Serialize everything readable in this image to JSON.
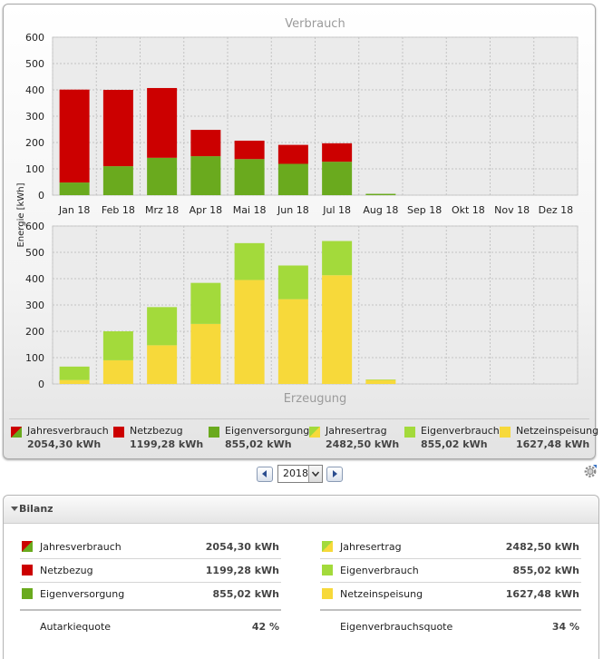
{
  "chart_data": [
    {
      "type": "bar",
      "stacked": true,
      "title": "Verbrauch",
      "ylabel": "Energie [kWh]",
      "ylim": [
        0,
        600
      ],
      "yticks": [
        0,
        100,
        200,
        300,
        400,
        500,
        600
      ],
      "grid": true,
      "categories": [
        "Jan 18",
        "Feb 18",
        "Mrz 18",
        "Apr 18",
        "Mai 18",
        "Jun 18",
        "Jul 18",
        "Aug 18",
        "Sep 18",
        "Okt 18",
        "Nov 18",
        "Dez 18"
      ],
      "series": [
        {
          "name": "Eigenversorgung",
          "color": "#6aaa1e",
          "values": [
            48,
            110,
            142,
            148,
            137,
            119,
            127,
            5,
            0,
            0,
            0,
            0
          ]
        },
        {
          "name": "Netzbezug",
          "color": "#cc0000",
          "values": [
            353,
            290,
            265,
            100,
            70,
            72,
            70,
            0,
            0,
            0,
            0,
            0
          ]
        }
      ]
    },
    {
      "type": "bar",
      "stacked": true,
      "title": "Erzeugung",
      "ylim": [
        0,
        600
      ],
      "yticks": [
        0,
        100,
        200,
        300,
        400,
        500,
        600
      ],
      "grid": true,
      "categories": [
        "Jan 18",
        "Feb 18",
        "Mrz 18",
        "Apr 18",
        "Mai 18",
        "Jun 18",
        "Jul 18",
        "Aug 18",
        "Sep 18",
        "Okt 18",
        "Nov 18",
        "Dez 18"
      ],
      "series": [
        {
          "name": "Netzeinspeisung",
          "color": "#f7d93a",
          "values": [
            15,
            90,
            147,
            228,
            395,
            322,
            413,
            15,
            0,
            0,
            0,
            0
          ]
        },
        {
          "name": "Eigenverbrauch",
          "color": "#a3da3b",
          "values": [
            51,
            110,
            145,
            156,
            140,
            128,
            130,
            2,
            0,
            0,
            0,
            0
          ]
        }
      ]
    }
  ],
  "colors": {
    "netzbezug": "#cc0000",
    "eigenversorgung": "#6aaa1e",
    "eigenverbrauch": "#a3da3b",
    "netzeinspeisung": "#f7d93a"
  },
  "legend": [
    {
      "label": "Jahresverbrauch",
      "value": "2054,30 kWh",
      "swatch": "split-red-green"
    },
    {
      "label": "Netzbezug",
      "value": "1199,28 kWh",
      "swatch": "red"
    },
    {
      "label": "Eigenversorgung",
      "value": "855,02 kWh",
      "swatch": "green"
    },
    {
      "label": "Jahresertrag",
      "value": "2482,50 kWh",
      "swatch": "split-green-yellow"
    },
    {
      "label": "Eigenverbrauch",
      "value": "855,02 kWh",
      "swatch": "lightgreen"
    },
    {
      "label": "Netzeinspeisung",
      "value": "1627,48 kWh",
      "swatch": "yellow"
    }
  ],
  "year_nav": {
    "year": "2018"
  },
  "bilanz": {
    "title": "Bilanz",
    "left": [
      {
        "label": "Jahresverbrauch",
        "value": "2054,30 kWh",
        "swatch": "split-red-green"
      },
      {
        "label": "Netzbezug",
        "value": "1199,28 kWh",
        "swatch": "red"
      },
      {
        "label": "Eigenversorgung",
        "value": "855,02 kWh",
        "swatch": "green"
      }
    ],
    "right": [
      {
        "label": "Jahresertrag",
        "value": "2482,50 kWh",
        "swatch": "split-green-yellow"
      },
      {
        "label": "Eigenverbrauch",
        "value": "855,02 kWh",
        "swatch": "lightgreen"
      },
      {
        "label": "Netzeinspeisung",
        "value": "1627,48 kWh",
        "swatch": "yellow"
      }
    ],
    "left_summary": {
      "label": "Autarkiequote",
      "value": "42 %"
    },
    "right_summary": {
      "label": "Eigenverbrauchsquote",
      "value": "34 %"
    }
  }
}
